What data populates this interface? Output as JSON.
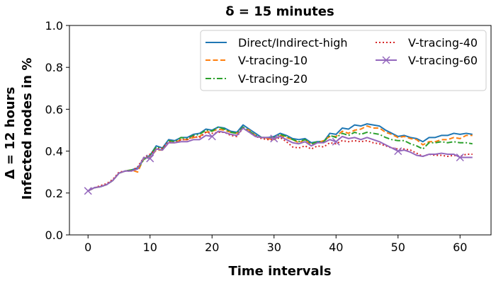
{
  "chart_data": {
    "type": "line",
    "title": "δ = 15 minutes",
    "xlabel": "Time intervals",
    "ylabel_line1": "Δ = 12 hours",
    "ylabel_line2": "Infected nodes in %",
    "xlim": [
      -3,
      65
    ],
    "ylim": [
      0,
      1.0
    ],
    "xticks": [
      0,
      10,
      20,
      30,
      40,
      50,
      60
    ],
    "yticks": [
      0.0,
      0.2,
      0.4,
      0.6,
      0.8,
      1.0
    ],
    "xtick_labels": [
      "0",
      "10",
      "20",
      "30",
      "40",
      "50",
      "60"
    ],
    "ytick_labels": [
      "0.0",
      "0.2",
      "0.4",
      "0.6",
      "0.8",
      "1.0"
    ],
    "legend_position": "top-right",
    "legend_columns": 2,
    "grid": false,
    "x": [
      0,
      1,
      2,
      3,
      4,
      5,
      6,
      7,
      8,
      9,
      10,
      11,
      12,
      13,
      14,
      15,
      16,
      17,
      18,
      19,
      20,
      21,
      22,
      23,
      24,
      25,
      26,
      27,
      28,
      29,
      30,
      31,
      32,
      33,
      34,
      35,
      36,
      37,
      38,
      39,
      40,
      41,
      42,
      43,
      44,
      45,
      46,
      47,
      48,
      49,
      50,
      51,
      52,
      53,
      54,
      55,
      56,
      57,
      58,
      59,
      60,
      61,
      62
    ],
    "series": [
      {
        "name": "Direct/Indirect-high",
        "color": "#1f77b4",
        "dash": "solid",
        "marker": "none",
        "values": [
          0.21,
          0.225,
          0.23,
          0.24,
          0.26,
          0.295,
          0.305,
          0.31,
          0.32,
          0.36,
          0.38,
          0.425,
          0.415,
          0.455,
          0.45,
          0.465,
          0.465,
          0.48,
          0.485,
          0.505,
          0.5,
          0.515,
          0.51,
          0.495,
          0.49,
          0.525,
          0.505,
          0.485,
          0.465,
          0.465,
          0.47,
          0.485,
          0.475,
          0.46,
          0.455,
          0.46,
          0.44,
          0.445,
          0.445,
          0.485,
          0.48,
          0.51,
          0.505,
          0.525,
          0.52,
          0.53,
          0.525,
          0.52,
          0.5,
          0.485,
          0.47,
          0.475,
          0.465,
          0.46,
          0.445,
          0.465,
          0.465,
          0.475,
          0.475,
          0.485,
          0.48,
          0.485,
          0.48
        ]
      },
      {
        "name": "V-tracing-10",
        "color": "#ff7f0e",
        "dash": "dashed",
        "marker": "none",
        "values": [
          0.21,
          0.225,
          0.23,
          0.24,
          0.26,
          0.295,
          0.305,
          0.31,
          0.3,
          0.365,
          0.37,
          0.405,
          0.405,
          0.44,
          0.44,
          0.455,
          0.455,
          0.465,
          0.47,
          0.49,
          0.495,
          0.505,
          0.5,
          0.49,
          0.485,
          0.51,
          0.5,
          0.475,
          0.465,
          0.46,
          0.455,
          0.475,
          0.465,
          0.455,
          0.44,
          0.455,
          0.43,
          0.44,
          0.45,
          0.47,
          0.47,
          0.495,
          0.485,
          0.5,
          0.505,
          0.52,
          0.51,
          0.51,
          0.49,
          0.48,
          0.465,
          0.47,
          0.46,
          0.455,
          0.43,
          0.445,
          0.445,
          0.455,
          0.455,
          0.465,
          0.46,
          0.475,
          0.475
        ]
      },
      {
        "name": "V-tracing-20",
        "color": "#2ca02c",
        "dash": "dashdot",
        "marker": "none",
        "values": [
          0.21,
          0.225,
          0.23,
          0.24,
          0.26,
          0.295,
          0.305,
          0.31,
          0.315,
          0.36,
          0.38,
          0.42,
          0.41,
          0.45,
          0.445,
          0.465,
          0.46,
          0.475,
          0.48,
          0.5,
          0.495,
          0.515,
          0.505,
          0.49,
          0.485,
          0.515,
          0.495,
          0.475,
          0.465,
          0.465,
          0.465,
          0.48,
          0.47,
          0.455,
          0.445,
          0.455,
          0.435,
          0.445,
          0.445,
          0.475,
          0.465,
          0.485,
          0.475,
          0.49,
          0.48,
          0.49,
          0.485,
          0.48,
          0.465,
          0.455,
          0.45,
          0.45,
          0.435,
          0.425,
          0.41,
          0.44,
          0.44,
          0.445,
          0.44,
          0.445,
          0.44,
          0.44,
          0.435
        ]
      },
      {
        "name": "V-tracing-40",
        "color": "#d62728",
        "dash": "dotted",
        "marker": "none",
        "values": [
          0.21,
          0.225,
          0.235,
          0.245,
          0.265,
          0.3,
          0.305,
          0.305,
          0.325,
          0.37,
          0.385,
          0.41,
          0.415,
          0.445,
          0.44,
          0.455,
          0.455,
          0.47,
          0.465,
          0.49,
          0.485,
          0.49,
          0.49,
          0.475,
          0.47,
          0.51,
          0.49,
          0.47,
          0.46,
          0.455,
          0.455,
          0.465,
          0.445,
          0.42,
          0.415,
          0.425,
          0.41,
          0.425,
          0.42,
          0.44,
          0.435,
          0.45,
          0.445,
          0.45,
          0.445,
          0.45,
          0.44,
          0.435,
          0.425,
          0.415,
          0.41,
          0.41,
          0.405,
          0.39,
          0.375,
          0.385,
          0.38,
          0.38,
          0.375,
          0.38,
          0.375,
          0.385,
          0.385
        ]
      },
      {
        "name": "V-tracing-60",
        "color": "#9467bd",
        "dash": "solid",
        "marker": "x",
        "marker_every": 10,
        "values": [
          0.21,
          0.225,
          0.23,
          0.24,
          0.26,
          0.295,
          0.305,
          0.305,
          0.315,
          0.37,
          0.365,
          0.41,
          0.405,
          0.44,
          0.44,
          0.445,
          0.445,
          0.455,
          0.455,
          0.475,
          0.47,
          0.495,
          0.49,
          0.48,
          0.475,
          0.51,
          0.49,
          0.47,
          0.465,
          0.465,
          0.46,
          0.47,
          0.455,
          0.44,
          0.435,
          0.445,
          0.425,
          0.44,
          0.44,
          0.455,
          0.445,
          0.47,
          0.46,
          0.465,
          0.455,
          0.465,
          0.455,
          0.445,
          0.43,
          0.415,
          0.4,
          0.405,
          0.395,
          0.38,
          0.375,
          0.385,
          0.385,
          0.39,
          0.385,
          0.385,
          0.37,
          0.37,
          0.37
        ]
      }
    ]
  }
}
